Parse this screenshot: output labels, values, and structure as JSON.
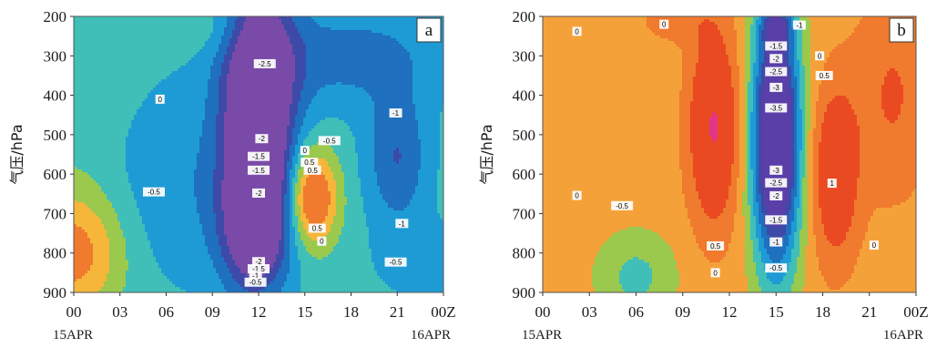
{
  "chart_data": [
    {
      "type": "heatmap",
      "panel_label": "a",
      "ylabel": "气压/hPa",
      "y_ticks": [
        "200",
        "300",
        "400",
        "500",
        "600",
        "700",
        "800",
        "900"
      ],
      "ylim": [
        900,
        200
      ],
      "x_ticks": [
        "00",
        "03",
        "06",
        "09",
        "12",
        "15",
        "18",
        "21",
        "00Z"
      ],
      "x_dates": [
        "15APR",
        "16APR"
      ],
      "xlim_hours": [
        0,
        24
      ],
      "colors": {
        "1": "#f07a2d",
        "0.5": "#f5b63a",
        "0": "#9ac94e",
        "-0.5": "#3fbfb8",
        "-1": "#1e9bd4",
        "-1.5": "#1f70bf",
        "-2": "#3d4aa8",
        "-2.5": "#7a4aa8"
      },
      "blobs": [
        {
          "h": 0,
          "p": 800,
          "rh": 3.2,
          "rp": 160,
          "v": 1.6
        },
        {
          "h": 9.5,
          "p": 230,
          "rh": 2.2,
          "rp": 80,
          "v": 0.4
        },
        {
          "h": 0,
          "p": 400,
          "rh": 4,
          "rp": 300,
          "v": 0.2
        },
        {
          "h": 12,
          "p": 360,
          "rh": 2.4,
          "rp": 260,
          "v": -2.7
        },
        {
          "h": 11.8,
          "p": 740,
          "rh": 2.2,
          "rp": 170,
          "v": -2.5
        },
        {
          "h": 12,
          "p": 560,
          "rh": 2.0,
          "rp": 180,
          "v": -1.2
        },
        {
          "h": 15.5,
          "p": 660,
          "rh": 1.6,
          "rp": 120,
          "v": 2.2
        },
        {
          "h": 21,
          "p": 560,
          "rh": 2.0,
          "rp": 170,
          "v": -1.2
        },
        {
          "h": 18,
          "p": 300,
          "rh": 6,
          "rp": 130,
          "v": -0.9
        },
        {
          "h": 7,
          "p": 620,
          "rh": 5,
          "rp": 260,
          "v": -0.6
        },
        {
          "h": 23,
          "p": 820,
          "rh": 3,
          "rp": 90,
          "v": -0.6
        }
      ],
      "base": -0.3,
      "contour_labels": [
        {
          "t": "-2.5",
          "h": 12.4,
          "p": 320
        },
        {
          "t": "0",
          "h": 5.6,
          "p": 410
        },
        {
          "t": "-2",
          "h": 12.2,
          "p": 510
        },
        {
          "t": "-1.5",
          "h": 12.0,
          "p": 555
        },
        {
          "t": "-1.5",
          "h": 12.0,
          "p": 590
        },
        {
          "t": "-0.5",
          "h": 5.2,
          "p": 645
        },
        {
          "t": "-2",
          "h": 12.0,
          "p": 648
        },
        {
          "t": "-0.5",
          "h": 16.6,
          "p": 515
        },
        {
          "t": "0",
          "h": 15.0,
          "p": 540
        },
        {
          "t": "0.5",
          "h": 15.3,
          "p": 570
        },
        {
          "t": "0.5",
          "h": 15.5,
          "p": 590
        },
        {
          "t": "0.5",
          "h": 15.8,
          "p": 737
        },
        {
          "t": "0",
          "h": 16.1,
          "p": 770
        },
        {
          "t": "-1",
          "h": 20.9,
          "p": 445
        },
        {
          "t": "-1",
          "h": 21.3,
          "p": 725
        },
        {
          "t": "-0.5",
          "h": 20.9,
          "p": 823
        },
        {
          "t": "-2",
          "h": 12.0,
          "p": 822
        },
        {
          "t": "-1.5",
          "h": 12.0,
          "p": 840
        },
        {
          "t": "-1",
          "h": 11.8,
          "p": 857
        },
        {
          "t": "-0.5",
          "h": 11.8,
          "p": 874
        }
      ]
    },
    {
      "type": "heatmap",
      "panel_label": "b",
      "ylabel": "气压/hPa",
      "y_ticks": [
        "200",
        "300",
        "400",
        "500",
        "600",
        "700",
        "800",
        "900"
      ],
      "ylim": [
        900,
        200
      ],
      "x_ticks": [
        "00",
        "03",
        "06",
        "09",
        "12",
        "15",
        "18",
        "21",
        "00Z"
      ],
      "x_dates": [
        "15APR",
        "16APR"
      ],
      "xlim_hours": [
        0,
        24
      ],
      "colors": {
        "2": "#e2358a",
        "1": "#ea4a22",
        "0.5": "#f07a2d",
        "0": "#f5a13a",
        "-0.5": "#9ac94e",
        "-1": "#3fbfb8",
        "-1.5": "#1e9bd4",
        "-2": "#1f70bf",
        "-2.5": "#3d4aa8",
        "-3": "#5a3fa8"
      },
      "blobs": [
        {
          "h": 11,
          "p": 480,
          "rh": 1.6,
          "rp": 250,
          "v": 1.8
        },
        {
          "h": 15,
          "p": 510,
          "rh": 1.5,
          "rp": 330,
          "v": -4.4
        },
        {
          "h": 15,
          "p": 230,
          "rh": 1.0,
          "rp": 50,
          "v": -1.5
        },
        {
          "h": 18.8,
          "p": 600,
          "rh": 1.5,
          "rp": 220,
          "v": 1.5
        },
        {
          "h": 22.5,
          "p": 400,
          "rh": 2.5,
          "rp": 260,
          "v": 0.8
        },
        {
          "h": 6,
          "p": 860,
          "rh": 2.5,
          "rp": 110,
          "v": -0.9
        },
        {
          "h": 8.5,
          "p": 210,
          "rh": 2.4,
          "rp": 60,
          "v": 0.5
        },
        {
          "h": 1,
          "p": 350,
          "rh": 6,
          "rp": 200,
          "v": -0.1
        }
      ],
      "base": 0.25,
      "contour_labels": [
        {
          "t": "0",
          "h": 7.8,
          "p": 220
        },
        {
          "t": "0",
          "h": 2.2,
          "p": 238
        },
        {
          "t": "-1",
          "h": 16.5,
          "p": 222
        },
        {
          "t": "-1.5",
          "h": 15.0,
          "p": 275
        },
        {
          "t": "-2",
          "h": 15.0,
          "p": 307
        },
        {
          "t": "-2.5",
          "h": 15.0,
          "p": 340
        },
        {
          "t": "-3",
          "h": 15.0,
          "p": 380
        },
        {
          "t": "-3.5",
          "h": 15.0,
          "p": 432
        },
        {
          "t": "0",
          "h": 17.8,
          "p": 300
        },
        {
          "t": "0.5",
          "h": 18.1,
          "p": 350
        },
        {
          "t": "0",
          "h": 2.2,
          "p": 654
        },
        {
          "t": "-0.5",
          "h": 5.1,
          "p": 680
        },
        {
          "t": "-3",
          "h": 15.0,
          "p": 590
        },
        {
          "t": "-2.5",
          "h": 15.0,
          "p": 622
        },
        {
          "t": "-2",
          "h": 15.0,
          "p": 655
        },
        {
          "t": "-1.5",
          "h": 15.0,
          "p": 716
        },
        {
          "t": "-1",
          "h": 15.0,
          "p": 772
        },
        {
          "t": "-0.5",
          "h": 15.0,
          "p": 838
        },
        {
          "t": "0.5",
          "h": 11.1,
          "p": 782
        },
        {
          "t": "0",
          "h": 11.1,
          "p": 850
        },
        {
          "t": "1",
          "h": 18.6,
          "p": 623
        },
        {
          "t": "0",
          "h": 21.3,
          "p": 780
        }
      ]
    }
  ]
}
